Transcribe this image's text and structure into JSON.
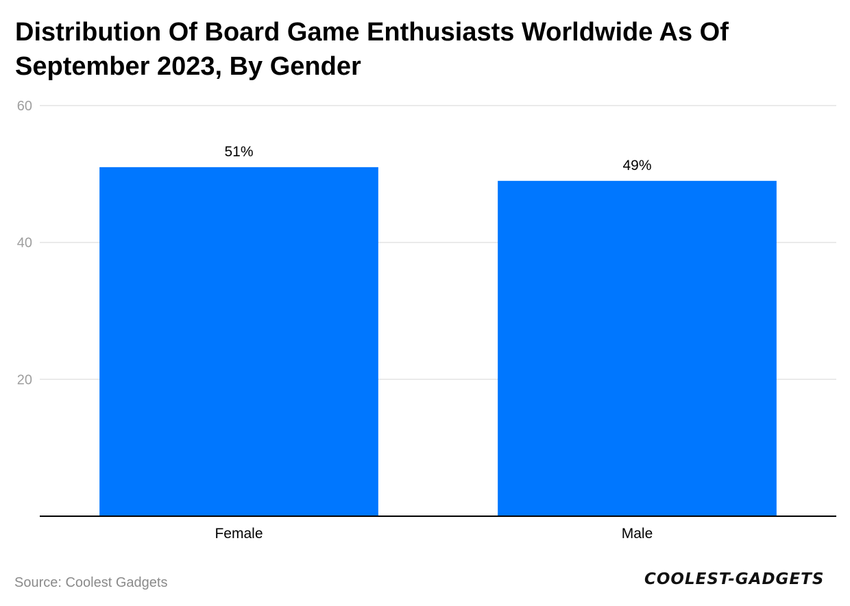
{
  "title": "Distribution Of Board Game Enthusiasts Worldwide As Of September 2023, By Gender",
  "source": "Source: Coolest Gadgets",
  "brand": "COOLEST-GADGETS",
  "colors": {
    "bar": "#0077FF",
    "grid": "#e3e3e3",
    "axis": "#000000",
    "tick_label": "#9e9e9e",
    "category_label": "#000000"
  },
  "chart_data": {
    "type": "bar",
    "title": "Distribution Of Board Game Enthusiasts Worldwide As Of September 2023, By Gender",
    "xlabel": "",
    "ylabel": "",
    "categories": [
      "Female",
      "Male"
    ],
    "values": [
      51,
      49
    ],
    "data_labels": [
      "51%",
      "49%"
    ],
    "ylim": [
      0,
      60
    ],
    "yticks": [
      20,
      40,
      60
    ],
    "grid": true,
    "legend": "none"
  }
}
